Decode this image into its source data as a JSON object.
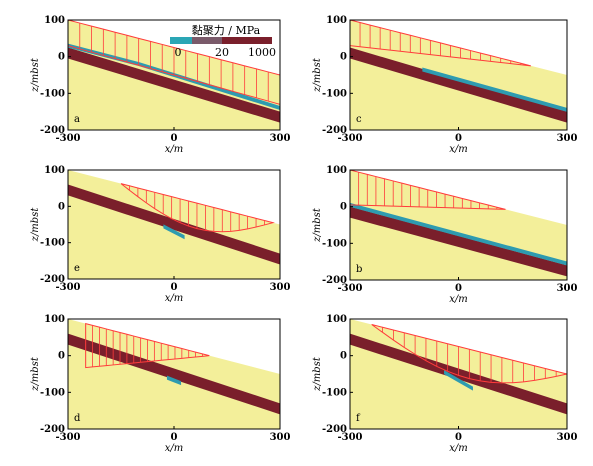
{
  "colors": {
    "background": "#f3ef9a",
    "dark_layer": "#7a1f2b",
    "blue_layer": "#2e9bb0",
    "profile": "#ff3b3b"
  },
  "colorbar": {
    "title": "黏聚力 / MPa",
    "ticks": [
      "0",
      "20",
      "1000"
    ],
    "colors": [
      "#2aa6b5",
      "#7a5a6a",
      "#7a1f2b"
    ]
  },
  "chart_data": [
    {
      "type": "area",
      "label": "a",
      "xlabel": "x/m",
      "ylabel": "z/mbst",
      "xlim": [
        -300,
        300
      ],
      "ylim": [
        -200,
        100
      ],
      "xticks": [
        "-300",
        "0",
        "300"
      ],
      "yticks": [
        "100",
        "0",
        "-100",
        "-200"
      ],
      "top_surface": [
        [
          -300,
          100
        ],
        [
          300,
          -50
        ]
      ],
      "dark_band": {
        "upper": [
          [
            -300,
            25
          ],
          [
            300,
            -150
          ]
        ],
        "lower": [
          [
            -300,
            -5
          ],
          [
            300,
            -180
          ]
        ]
      },
      "blue_band": [
        [
          -300,
          30
        ],
        [
          -100,
          -20
        ],
        [
          300,
          -140
        ]
      ],
      "profile": {
        "start": -300,
        "end": 300,
        "depth_at_start": 70,
        "depth_at_end": 80
      }
    },
    {
      "type": "area",
      "label": "b",
      "xlabel": "x/m",
      "ylabel": "z/mbst",
      "xlim": [
        -300,
        300
      ],
      "ylim": [
        -200,
        100
      ],
      "xticks": [
        "-300",
        "0",
        "300"
      ],
      "yticks": [
        "100",
        "0",
        "-100",
        "-200"
      ],
      "top_surface": [
        [
          -300,
          100
        ],
        [
          300,
          -50
        ]
      ],
      "dark_band": {
        "upper": [
          [
            -300,
            0
          ],
          [
            300,
            -160
          ]
        ],
        "lower": [
          [
            -300,
            -30
          ],
          [
            300,
            -190
          ]
        ]
      },
      "blue_band": [
        [
          -300,
          5
        ],
        [
          300,
          -155
        ]
      ],
      "profile": {
        "start": -300,
        "end": 130,
        "depth_at_start": 95,
        "depth_at_end": 0
      }
    },
    {
      "type": "area",
      "label": "c",
      "xlabel": "x/m",
      "ylabel": "z/mbst",
      "xlim": [
        -300,
        300
      ],
      "ylim": [
        -200,
        100
      ],
      "xticks": [
        "-300",
        "0",
        "300"
      ],
      "yticks": [
        "100",
        "0",
        "-100",
        "-200"
      ],
      "top_surface": [
        [
          -300,
          100
        ],
        [
          300,
          -50
        ]
      ],
      "dark_band": {
        "upper": [
          [
            -300,
            25
          ],
          [
            300,
            -150
          ]
        ],
        "lower": [
          [
            -300,
            -5
          ],
          [
            300,
            -180
          ]
        ]
      },
      "blue_band": [
        [
          -100,
          -35
        ],
        [
          300,
          -145
        ]
      ],
      "profile": {
        "start": -300,
        "end": 200,
        "depth_at_start": 70,
        "depth_at_end": 0
      }
    },
    {
      "type": "area",
      "label": "d",
      "xlabel": "x/m",
      "ylabel": "z/mbst",
      "xlim": [
        -300,
        300
      ],
      "ylim": [
        -200,
        100
      ],
      "xticks": [
        "-300",
        "0",
        "300"
      ],
      "yticks": [
        "100",
        "0",
        "-100",
        "-200"
      ],
      "top_surface": [
        [
          -300,
          100
        ],
        [
          300,
          -50
        ]
      ],
      "dark_band": {
        "upper": [
          [
            -300,
            60
          ],
          [
            300,
            -130
          ]
        ],
        "lower": [
          [
            -300,
            30
          ],
          [
            300,
            -160
          ]
        ]
      },
      "blue_band": [
        [
          -20,
          -60
        ],
        [
          20,
          -75
        ]
      ],
      "profile": {
        "start": -250,
        "end": 100,
        "depth_at_start": 120,
        "depth_at_end": 0
      }
    },
    {
      "type": "area",
      "label": "e",
      "xlabel": "x/m",
      "ylabel": "z/mbst",
      "xlim": [
        -300,
        300
      ],
      "ylim": [
        -200,
        100
      ],
      "xticks": [
        "-300",
        "0",
        "300"
      ],
      "yticks": [
        "100",
        "0",
        "-100",
        "-200"
      ],
      "top_surface": [
        [
          -300,
          100
        ],
        [
          300,
          -50
        ]
      ],
      "dark_band": {
        "upper": [
          [
            -300,
            60
          ],
          [
            300,
            -130
          ]
        ],
        "lower": [
          [
            -300,
            30
          ],
          [
            300,
            -160
          ]
        ]
      },
      "blue_band": [
        [
          -30,
          -55
        ],
        [
          30,
          -85
        ]
      ],
      "profile": {
        "start": -150,
        "end": 280,
        "depth_at_start": 0,
        "depth_at_end": 0,
        "max_depth": 70
      }
    },
    {
      "type": "area",
      "label": "f",
      "xlabel": "x/m",
      "ylabel": "z/mbst",
      "xlim": [
        -300,
        300
      ],
      "ylim": [
        -200,
        100
      ],
      "xticks": [
        "-300",
        "0",
        "300"
      ],
      "yticks": [
        "100",
        "0",
        "-100",
        "-200"
      ],
      "top_surface": [
        [
          -300,
          100
        ],
        [
          300,
          -50
        ]
      ],
      "dark_band": {
        "upper": [
          [
            -300,
            60
          ],
          [
            300,
            -130
          ]
        ],
        "lower": [
          [
            -300,
            30
          ],
          [
            300,
            -160
          ]
        ]
      },
      "blue_band": [
        [
          -40,
          -45
        ],
        [
          40,
          -90
        ]
      ],
      "profile": {
        "start": -240,
        "end": 300,
        "depth_at_start": 0,
        "depth_at_end": 0,
        "max_depth": 80
      }
    }
  ]
}
